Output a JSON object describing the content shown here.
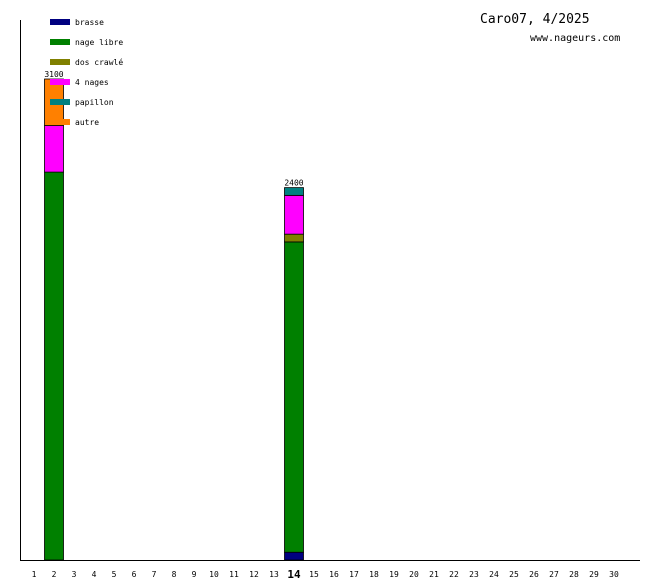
{
  "header": {
    "title": "Caro07, 4/2025",
    "site": "www.nageurs.com"
  },
  "chart_data": {
    "type": "bar",
    "stacked": true,
    "x": [
      "1",
      "2",
      "3",
      "4",
      "5",
      "6",
      "7",
      "8",
      "9",
      "10",
      "11",
      "12",
      "13",
      "14",
      "15",
      "16",
      "17",
      "18",
      "19",
      "20",
      "21",
      "22",
      "23",
      "24",
      "25",
      "26",
      "27",
      "28",
      "29",
      "30"
    ],
    "highlighted_x": "14",
    "ylim": [
      0,
      3100
    ],
    "grid": false,
    "legend_position": "top-left",
    "series": [
      {
        "name": "brasse",
        "color": "#000080",
        "values": [
          0,
          0,
          0,
          0,
          0,
          0,
          0,
          0,
          0,
          0,
          0,
          0,
          0,
          50,
          0,
          0,
          0,
          0,
          0,
          0,
          0,
          0,
          0,
          0,
          0,
          0,
          0,
          0,
          0,
          0
        ]
      },
      {
        "name": "nage libre",
        "color": "#008000",
        "values": [
          0,
          2500,
          0,
          0,
          0,
          0,
          0,
          0,
          0,
          0,
          0,
          0,
          0,
          2000,
          0,
          0,
          0,
          0,
          0,
          0,
          0,
          0,
          0,
          0,
          0,
          0,
          0,
          0,
          0,
          0
        ]
      },
      {
        "name": "dos crawlé",
        "color": "#808000",
        "values": [
          0,
          0,
          0,
          0,
          0,
          0,
          0,
          0,
          0,
          0,
          0,
          0,
          0,
          50,
          0,
          0,
          0,
          0,
          0,
          0,
          0,
          0,
          0,
          0,
          0,
          0,
          0,
          0,
          0,
          0
        ]
      },
      {
        "name": "4 nages",
        "color": "#ff00ff",
        "values": [
          0,
          300,
          0,
          0,
          0,
          0,
          0,
          0,
          0,
          0,
          0,
          0,
          0,
          250,
          0,
          0,
          0,
          0,
          0,
          0,
          0,
          0,
          0,
          0,
          0,
          0,
          0,
          0,
          0,
          0
        ]
      },
      {
        "name": "papillon",
        "color": "#008080",
        "values": [
          0,
          0,
          0,
          0,
          0,
          0,
          0,
          0,
          0,
          0,
          0,
          0,
          0,
          50,
          0,
          0,
          0,
          0,
          0,
          0,
          0,
          0,
          0,
          0,
          0,
          0,
          0,
          0,
          0,
          0
        ]
      },
      {
        "name": "autre",
        "color": "#ff8000",
        "values": [
          0,
          300,
          0,
          0,
          0,
          0,
          0,
          0,
          0,
          0,
          0,
          0,
          0,
          0,
          0,
          0,
          0,
          0,
          0,
          0,
          0,
          0,
          0,
          0,
          0,
          0,
          0,
          0,
          0,
          0
        ]
      }
    ],
    "totals": [
      {
        "x": "2",
        "label": "3100"
      },
      {
        "x": "14",
        "label": "2400"
      }
    ]
  }
}
